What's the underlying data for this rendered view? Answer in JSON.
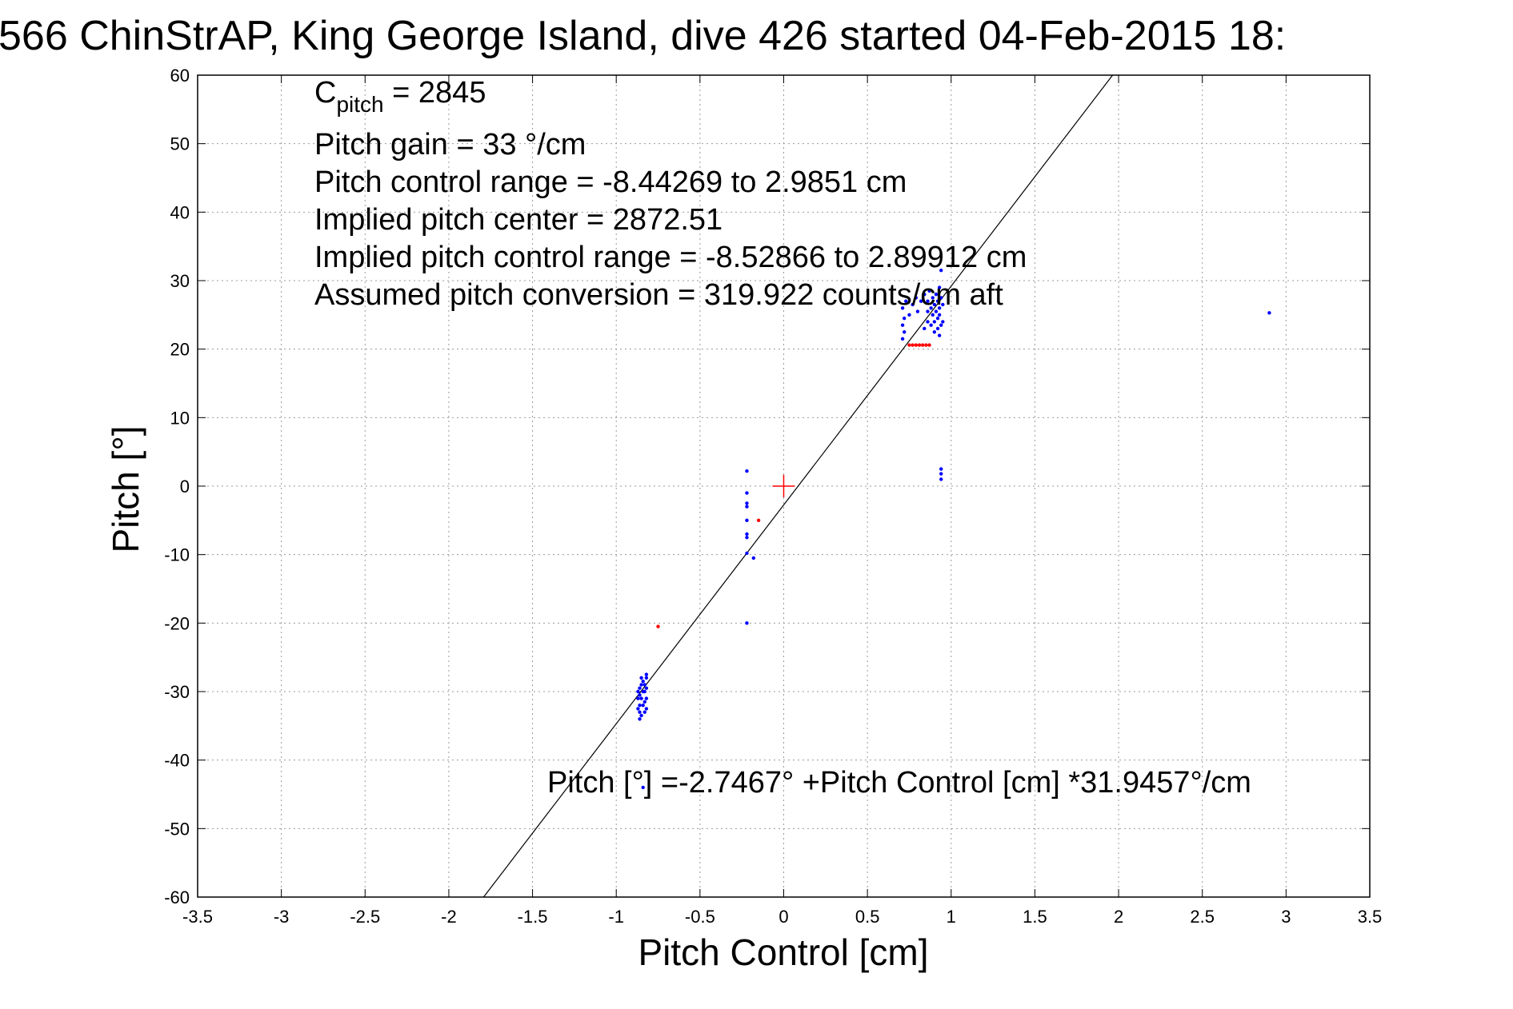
{
  "chart_data": {
    "type": "scatter",
    "title": "566 ChinStrAP, King George Island, dive 426 started 04-Feb-2015 18:",
    "xlabel": "Pitch Control [cm]",
    "ylabel": "Pitch [°]",
    "xlim": [
      -3.5,
      3.5
    ],
    "ylim": [
      -60,
      60
    ],
    "xticks": [
      -3.5,
      -3,
      -2.5,
      -2,
      -1.5,
      -1,
      -0.5,
      0,
      0.5,
      1,
      1.5,
      2,
      2.5,
      3,
      3.5
    ],
    "yticks": [
      -60,
      -50,
      -40,
      -30,
      -20,
      -10,
      0,
      10,
      20,
      30,
      40,
      50,
      60
    ],
    "xtick_labels": [
      "-3.5",
      "-3",
      "-2.5",
      "-2",
      "-1.5",
      "-1",
      "-0.5",
      "0",
      "0.5",
      "1",
      "1.5",
      "2",
      "2.5",
      "3",
      "3.5"
    ],
    "ytick_labels": [
      "-60",
      "-50",
      "-40",
      "-30",
      "-20",
      "-10",
      "0",
      "10",
      "20",
      "30",
      "40",
      "50",
      "60"
    ],
    "grid": true,
    "fit_line": {
      "intercept": -2.7467,
      "slope": 31.9457,
      "color": "#000000"
    },
    "center_marker": {
      "x": 0,
      "y": 0,
      "color": "#ff0000"
    },
    "series": [
      {
        "color": "#0000ff",
        "points": [
          [
            -0.86,
            -34
          ],
          [
            -0.86,
            -33
          ],
          [
            -0.87,
            -32.5
          ],
          [
            -0.86,
            -32
          ],
          [
            -0.87,
            -31
          ],
          [
            -0.86,
            -30.5
          ],
          [
            -0.87,
            -30
          ],
          [
            -0.86,
            -29.5
          ],
          [
            -0.85,
            -33.5
          ],
          [
            -0.84,
            -32
          ],
          [
            -0.85,
            -31
          ],
          [
            -0.84,
            -30
          ],
          [
            -0.85,
            -29
          ],
          [
            -0.84,
            -28.5
          ],
          [
            -0.85,
            -28
          ],
          [
            -0.83,
            -33
          ],
          [
            -0.83,
            -31.5
          ],
          [
            -0.83,
            -30
          ],
          [
            -0.83,
            -29
          ],
          [
            -0.82,
            -28
          ],
          [
            -0.82,
            -27.5
          ],
          [
            -0.82,
            -29.5
          ],
          [
            -0.82,
            -31
          ],
          [
            -0.82,
            -32.5
          ],
          [
            -0.84,
            -44
          ],
          [
            -0.22,
            2.2
          ],
          [
            -0.22,
            -1
          ],
          [
            -0.22,
            -2.5
          ],
          [
            -0.22,
            -3
          ],
          [
            -0.22,
            -5
          ],
          [
            -0.22,
            -7
          ],
          [
            -0.22,
            -7.5
          ],
          [
            -0.22,
            -9.8
          ],
          [
            -0.18,
            -10.5
          ],
          [
            -0.22,
            -20
          ],
          [
            0.94,
            2.5
          ],
          [
            0.94,
            1.8
          ],
          [
            0.94,
            1
          ],
          [
            2.9,
            25.3
          ],
          [
            0.71,
            21.5
          ],
          [
            0.72,
            22.5
          ],
          [
            0.71,
            23.5
          ],
          [
            0.72,
            24.5
          ],
          [
            0.71,
            26
          ],
          [
            0.73,
            27
          ],
          [
            0.75,
            25
          ],
          [
            0.77,
            26.5
          ],
          [
            0.79,
            27.5
          ],
          [
            0.8,
            25.5
          ],
          [
            0.82,
            27
          ],
          [
            0.84,
            28
          ],
          [
            0.84,
            23
          ],
          [
            0.86,
            24
          ],
          [
            0.86,
            25.5
          ],
          [
            0.86,
            27
          ],
          [
            0.87,
            28.5
          ],
          [
            0.88,
            23.5
          ],
          [
            0.88,
            26
          ],
          [
            0.89,
            25
          ],
          [
            0.89,
            27.5
          ],
          [
            0.9,
            22.5
          ],
          [
            0.9,
            24
          ],
          [
            0.9,
            26.5
          ],
          [
            0.91,
            28
          ],
          [
            0.91,
            25.5
          ],
          [
            0.92,
            23
          ],
          [
            0.92,
            24.5
          ],
          [
            0.92,
            27
          ],
          [
            0.93,
            22
          ],
          [
            0.93,
            25
          ],
          [
            0.93,
            26
          ],
          [
            0.93,
            29
          ],
          [
            0.94,
            23.5
          ],
          [
            0.94,
            27.5
          ],
          [
            0.94,
            31.5
          ],
          [
            0.95,
            24
          ],
          [
            0.95,
            26.5
          ]
        ]
      },
      {
        "color": "#ff0000",
        "points": [
          [
            -0.75,
            -20.5
          ],
          [
            -0.15,
            -5
          ],
          [
            0.75,
            20.6
          ],
          [
            0.77,
            20.6
          ],
          [
            0.79,
            20.6
          ],
          [
            0.81,
            20.6
          ],
          [
            0.83,
            20.6
          ],
          [
            0.85,
            20.6
          ],
          [
            0.87,
            20.6
          ]
        ]
      }
    ],
    "annotations": {
      "c_pitch_main": "C",
      "c_pitch_sub": "pitch",
      "c_pitch_value": " = 2845",
      "pitch_gain": "Pitch gain = 33 °/cm",
      "pitch_control_range": "Pitch control range = -8.44269 to 2.9851 cm",
      "implied_pitch_center": "Implied pitch center = 2872.51",
      "implied_pitch_control_range": "Implied pitch control range = -8.52866 to 2.89912 cm",
      "assumed_pitch_conversion": "Assumed pitch conversion = 319.922 counts/cm aft",
      "fit_equation": "Pitch [°] =-2.7467° +Pitch Control [cm] *31.9457°/cm"
    }
  }
}
